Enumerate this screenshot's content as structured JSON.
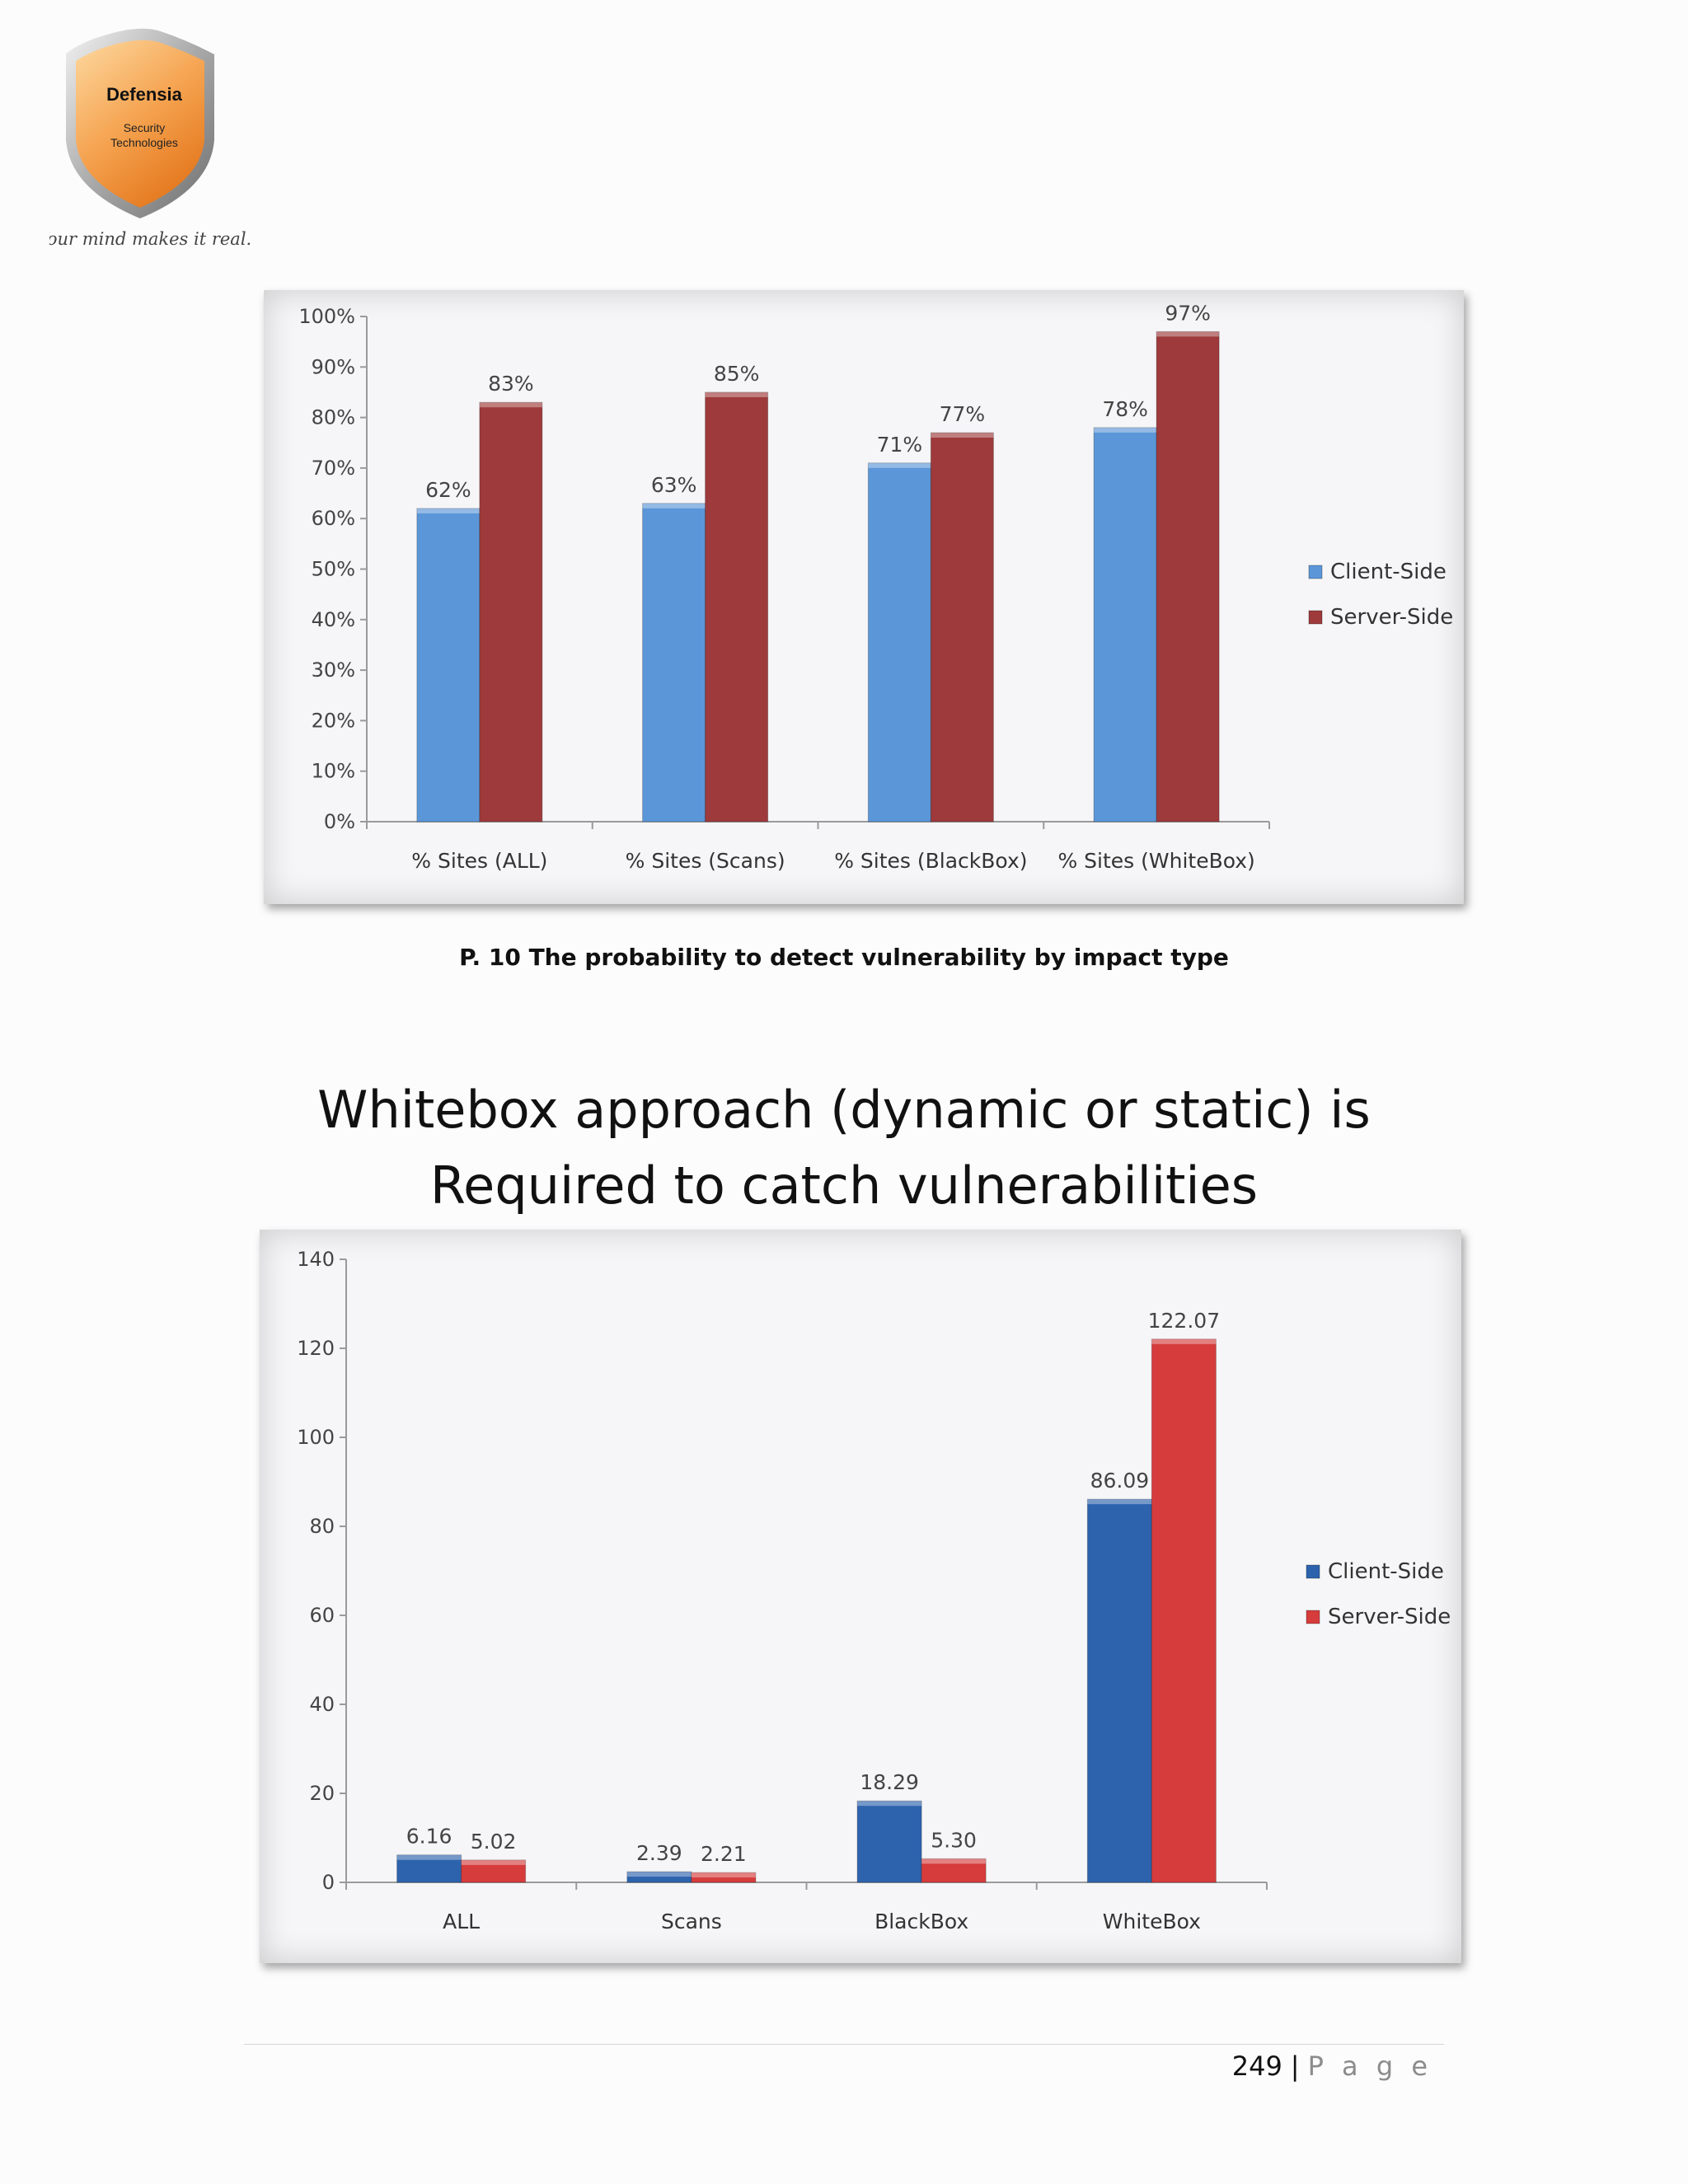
{
  "logo": {
    "name": "Defensia",
    "line2": "Security",
    "line3": "Technologies",
    "tagline": "Your mind makes it real."
  },
  "caption": "P. 10 The probability to detect vulnerability by impact type",
  "heading": {
    "line1": "Whitebox approach (dynamic or static) is",
    "line2": "Required to catch vulnerabilities"
  },
  "footer": {
    "page_number": "249",
    "separator": "|",
    "page_word": "P a g e"
  },
  "colors": {
    "client": "#5b96d8",
    "server": "#9e3a3b",
    "client2": "#2d63ad",
    "server2": "#d63c3c"
  },
  "chart_data": [
    {
      "type": "bar",
      "categories": [
        "% Sites (ALL)",
        "% Sites (Scans)",
        "% Sites (BlackBox)",
        "% Sites (WhiteBox)"
      ],
      "series": [
        {
          "name": "Client-Side",
          "values": [
            62,
            63,
            71,
            78
          ],
          "labels": [
            "62%",
            "63%",
            "71%",
            "78%"
          ]
        },
        {
          "name": "Server-Side",
          "values": [
            83,
            85,
            77,
            97
          ],
          "labels": [
            "83%",
            "85%",
            "77%",
            "97%"
          ]
        }
      ],
      "y_ticks": [
        0,
        10,
        20,
        30,
        40,
        50,
        60,
        70,
        80,
        90,
        100
      ],
      "y_tick_labels": [
        "0%",
        "10%",
        "20%",
        "30%",
        "40%",
        "50%",
        "60%",
        "70%",
        "80%",
        "90%",
        "100%"
      ],
      "ylim": [
        0,
        100
      ],
      "legend_position": "right",
      "grid": false
    },
    {
      "type": "bar",
      "categories": [
        "ALL",
        "Scans",
        "BlackBox",
        "WhiteBox"
      ],
      "series": [
        {
          "name": "Client-Side",
          "values": [
            6.16,
            2.39,
            18.29,
            86.09
          ],
          "labels": [
            "6.16",
            "2.39",
            "18.29",
            "86.09"
          ]
        },
        {
          "name": "Server-Side",
          "values": [
            5.02,
            2.21,
            5.3,
            122.07
          ],
          "labels": [
            "5.02",
            "2.21",
            "5.30",
            "122.07"
          ]
        }
      ],
      "y_ticks": [
        0,
        20,
        40,
        60,
        80,
        100,
        120,
        140
      ],
      "y_tick_labels": [
        "0",
        "20",
        "40",
        "60",
        "80",
        "100",
        "120",
        "140"
      ],
      "ylim": [
        0,
        140
      ],
      "legend_position": "right",
      "grid": false
    }
  ]
}
